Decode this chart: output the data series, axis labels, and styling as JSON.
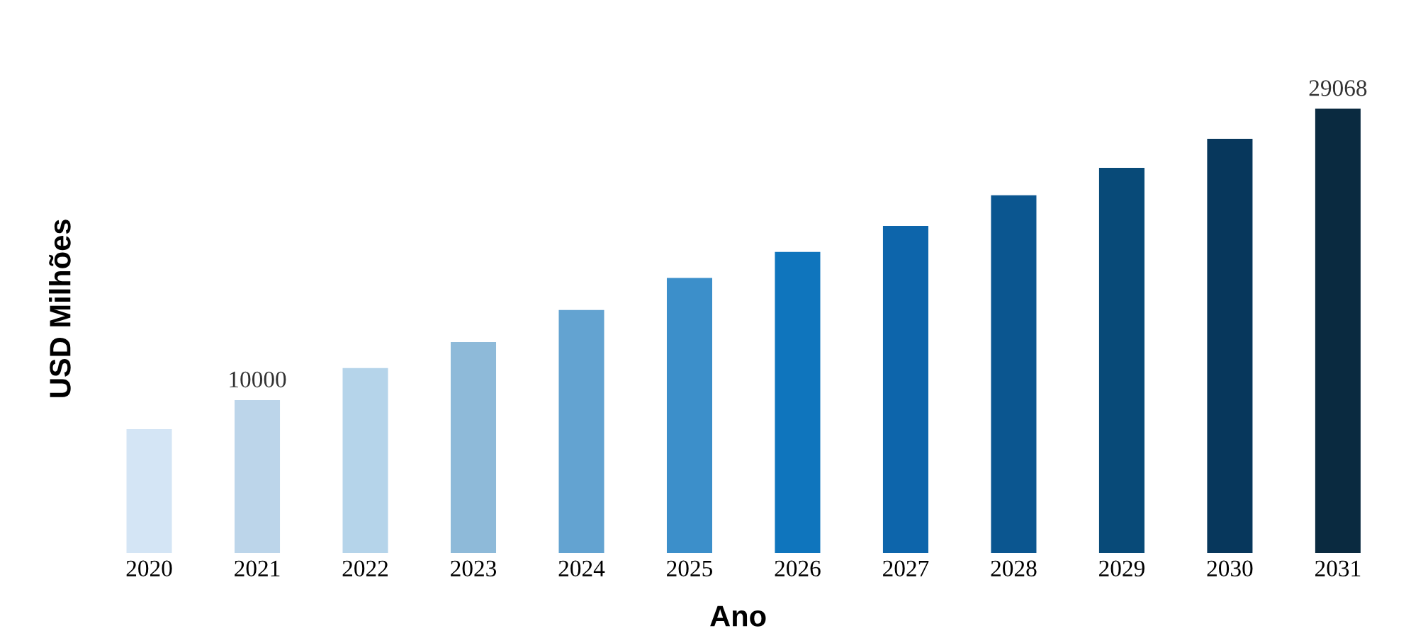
{
  "chart_data": {
    "type": "bar",
    "xlabel": "Ano",
    "ylabel": "USD Milhões",
    "categories": [
      "2020",
      "2021",
      "2022",
      "2023",
      "2024",
      "2025",
      "2026",
      "2027",
      "2028",
      "2029",
      "2030",
      "2031"
    ],
    "values": [
      8100,
      10000,
      12100,
      13800,
      15900,
      18000,
      19700,
      21400,
      23400,
      25200,
      27100,
      29068
    ],
    "colors": [
      "#d4e5f5",
      "#bcd5ea",
      "#b5d4ea",
      "#8ebad9",
      "#63a3d1",
      "#3c8fca",
      "#0f75bd",
      "#0d65ab",
      "#0b5690",
      "#084a78",
      "#07375c",
      "#0a2a40"
    ],
    "value_labels": [
      null,
      "10000",
      null,
      null,
      null,
      null,
      null,
      null,
      null,
      null,
      null,
      "29068"
    ],
    "grid": false,
    "legend": false
  }
}
